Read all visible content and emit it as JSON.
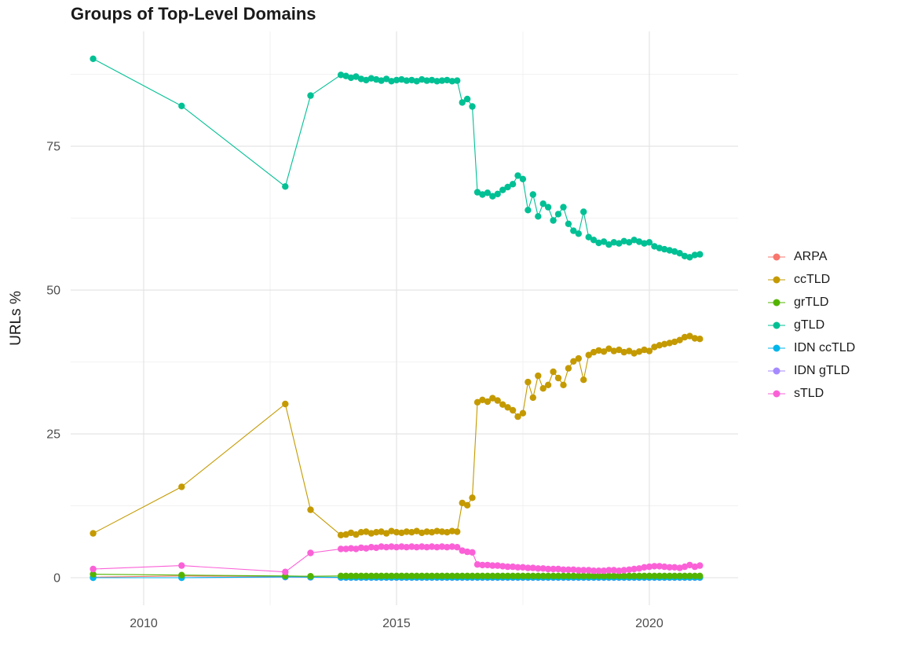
{
  "chart_data": {
    "type": "line",
    "title": "Groups of Top-Level Domains",
    "xlabel": "",
    "ylabel": "URLs %",
    "grid": true,
    "legend_position": "right",
    "xlim": [
      2008.556,
      2021.756
    ],
    "ylim": [
      -4.78,
      94.95
    ],
    "x_ticks": [
      2010,
      2015,
      2020
    ],
    "x_minor_ticks": [
      2012.5,
      2017.5
    ],
    "y_ticks": [
      0,
      25,
      50,
      75
    ],
    "y_minor_ticks": [
      12.5,
      37.5,
      62.5,
      87.5
    ],
    "x": [
      2009,
      2010.75,
      2012.8,
      2013.3,
      2013.9,
      2014,
      2014.1,
      2014.2,
      2014.3,
      2014.4,
      2014.5,
      2014.6,
      2014.7,
      2014.8,
      2014.9,
      2015,
      2015.1,
      2015.2,
      2015.3,
      2015.4,
      2015.5,
      2015.6,
      2015.7,
      2015.8,
      2015.9,
      2016,
      2016.1,
      2016.2,
      2016.3,
      2016.4,
      2016.5,
      2016.6,
      2016.7,
      2016.8,
      2016.9,
      2017,
      2017.1,
      2017.2,
      2017.3,
      2017.4,
      2017.5,
      2017.6,
      2017.7,
      2017.8,
      2017.9,
      2018,
      2018.1,
      2018.2,
      2018.3,
      2018.4,
      2018.5,
      2018.6,
      2018.7,
      2018.8,
      2018.9,
      2019,
      2019.1,
      2019.2,
      2019.3,
      2019.4,
      2019.5,
      2019.6,
      2019.7,
      2019.8,
      2019.9,
      2020,
      2020.1,
      2020.2,
      2020.3,
      2020.4,
      2020.5,
      2020.6,
      2020.7,
      2020.8,
      2020.9,
      2021
    ],
    "series": [
      {
        "name": "ARPA",
        "color": "#F8766D",
        "values": [
          0.1,
          0.3,
          0.2,
          0.1,
          0.05
        ]
      },
      {
        "name": "ccTLD",
        "color": "#C49A00",
        "values": [
          7.7,
          15.8,
          30.2,
          11.8,
          7.4,
          7.5,
          7.8,
          7.5,
          7.9,
          8,
          7.7,
          7.9,
          8,
          7.7,
          8.1,
          7.9,
          7.8,
          8,
          7.9,
          8.1,
          7.8,
          8,
          7.9,
          8.1,
          8,
          7.9,
          8.1,
          8,
          13,
          12.6,
          13.9,
          30.5,
          30.9,
          30.6,
          31.2,
          30.8,
          30.1,
          29.6,
          29.1,
          28,
          28.6,
          34,
          31.3,
          35.1,
          32.9,
          33.5,
          35.8,
          34.7,
          33.5,
          36.4,
          37.6,
          38.1,
          34.4,
          38.7,
          39.2,
          39.5,
          39.3,
          39.8,
          39.4,
          39.6,
          39.2,
          39.4,
          39,
          39.3,
          39.6,
          39.4,
          40.1,
          40.4,
          40.6,
          40.8,
          41,
          41.3,
          41.8,
          42,
          41.6,
          41.5
        ]
      },
      {
        "name": "grTLD",
        "color": "#53B400",
        "values": [
          0.6,
          0.45,
          0.3,
          0.25,
          0.3
        ]
      },
      {
        "name": "gTLD",
        "color": "#00C094",
        "values": [
          90.2,
          82,
          68,
          83.8,
          87.4,
          87.2,
          86.9,
          87.1,
          86.7,
          86.5,
          86.8,
          86.6,
          86.4,
          86.7,
          86.3,
          86.5,
          86.6,
          86.4,
          86.5,
          86.3,
          86.6,
          86.4,
          86.5,
          86.3,
          86.4,
          86.5,
          86.3,
          86.4,
          82.6,
          83.2,
          81.9,
          67,
          66.6,
          66.9,
          66.3,
          66.7,
          67.4,
          67.9,
          68.4,
          69.9,
          69.3,
          63.9,
          66.6,
          62.8,
          65,
          64.4,
          62.1,
          63.2,
          64.4,
          61.5,
          60.3,
          59.8,
          63.6,
          59.2,
          58.7,
          58.2,
          58.4,
          57.9,
          58.3,
          58.1,
          58.5,
          58.3,
          58.7,
          58.4,
          58.1,
          58.3,
          57.6,
          57.3,
          57.1,
          56.9,
          56.7,
          56.4,
          55.9,
          55.7,
          56.1,
          56.2
        ]
      },
      {
        "name": "IDN ccTLD",
        "color": "#00B6EB",
        "values": [
          0,
          0,
          0.15,
          0.1,
          0.05
        ]
      },
      {
        "name": "IDN gTLD",
        "color": "#A58AFF",
        "values": [
          0,
          0,
          0.1,
          0.05,
          0.02
        ]
      },
      {
        "name": "sTLD",
        "color": "#FB61D7",
        "values": [
          1.5,
          2.1,
          1,
          4.3,
          5,
          5,
          5.1,
          5,
          5.2,
          5.1,
          5.3,
          5.2,
          5.4,
          5.3,
          5.4,
          5.3,
          5.4,
          5.3,
          5.4,
          5.3,
          5.4,
          5.3,
          5.4,
          5.3,
          5.4,
          5.3,
          5.4,
          5.3,
          4.7,
          4.5,
          4.4,
          2.3,
          2.2,
          2.2,
          2.1,
          2.1,
          2,
          1.9,
          1.9,
          1.8,
          1.8,
          1.7,
          1.7,
          1.6,
          1.6,
          1.5,
          1.5,
          1.5,
          1.4,
          1.4,
          1.4,
          1.3,
          1.3,
          1.3,
          1.2,
          1.2,
          1.2,
          1.3,
          1.3,
          1.2,
          1.3,
          1.4,
          1.5,
          1.6,
          1.8,
          1.9,
          2,
          2,
          1.9,
          1.8,
          1.8,
          1.7,
          1.9,
          2.2,
          1.9,
          2.1
        ]
      }
    ]
  }
}
